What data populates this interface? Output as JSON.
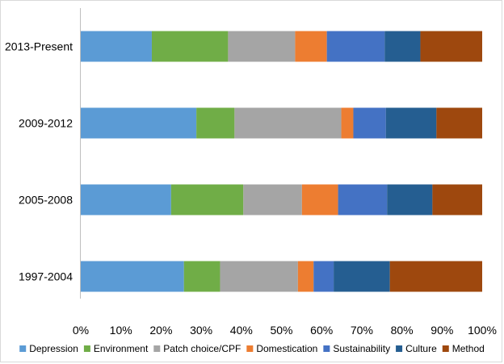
{
  "chart_data": {
    "type": "bar",
    "orientation": "horizontal",
    "stacked": "percent",
    "categories": [
      "2013-Present",
      "2009-2012",
      "2005-2008",
      "1997-2004"
    ],
    "series": [
      {
        "name": "Depression",
        "color": "#5b9bd5",
        "values": [
          17.7,
          28.8,
          22.5,
          25.7
        ]
      },
      {
        "name": "Environment",
        "color": "#70ad47",
        "values": [
          19.0,
          9.5,
          18.0,
          9.0
        ]
      },
      {
        "name": "Patch choice/CPF",
        "color": "#a5a5a5",
        "values": [
          16.7,
          26.6,
          14.6,
          19.4
        ]
      },
      {
        "name": "Domestication",
        "color": "#ed7d31",
        "values": [
          7.9,
          3.0,
          9.0,
          3.9
        ]
      },
      {
        "name": "Sustainability",
        "color": "#4472c4",
        "values": [
          14.4,
          8.1,
          12.2,
          5.0
        ]
      },
      {
        "name": "Culture",
        "color": "#255e91",
        "values": [
          8.9,
          12.6,
          11.3,
          14.0
        ]
      },
      {
        "name": "Method",
        "color": "#9e480e",
        "values": [
          15.4,
          11.4,
          12.4,
          23.0
        ]
      }
    ],
    "xticks": [
      "0%",
      "10%",
      "20%",
      "30%",
      "40%",
      "50%",
      "60%",
      "70%",
      "80%",
      "90%",
      "100%"
    ],
    "xlim": [
      0,
      100
    ],
    "grid": false,
    "legend_position": "bottom"
  }
}
